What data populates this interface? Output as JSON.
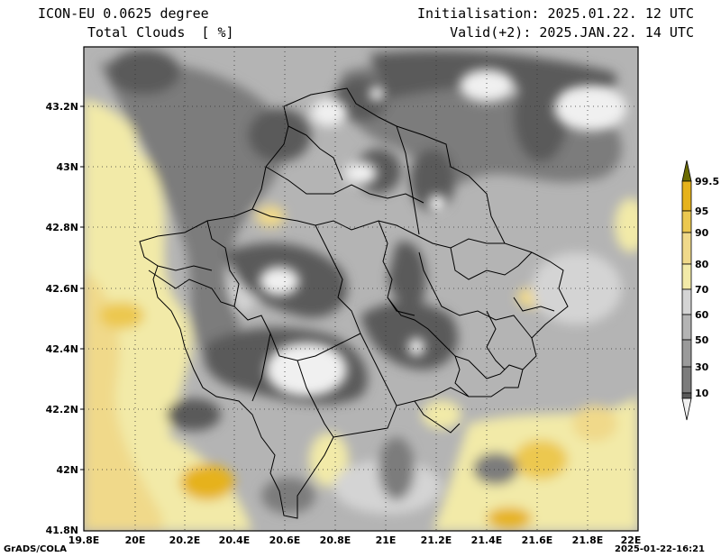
{
  "header": {
    "model": "ICON-EU 0.0625 degree",
    "field": "Total Clouds  [ %]",
    "initialisation": "Initialisation: 2025.01.22. 12 UTC",
    "valid": "Valid(+2): 2025.JAN.22. 14 UTC"
  },
  "axes": {
    "x_ticks": [
      "19.8E",
      "20E",
      "20.2E",
      "20.4E",
      "20.6E",
      "20.8E",
      "21E",
      "21.2E",
      "21.4E",
      "21.6E",
      "21.8E",
      "22E"
    ],
    "y_ticks": [
      "43.2N",
      "43N",
      "42.8N",
      "42.6N",
      "42.4N",
      "42.2N",
      "42N",
      "41.8N"
    ],
    "x_range": [
      19.8,
      22.0
    ],
    "y_range": [
      41.8,
      43.4
    ],
    "grid": true
  },
  "legend": {
    "labels": [
      "99.5",
      "95",
      "90",
      "80",
      "70",
      "60",
      "50",
      "30",
      "10"
    ],
    "colors": [
      "#6b6b00",
      "#e6b21c",
      "#ecc850",
      "#f0d98a",
      "#f2eaa8",
      "#d4d4d4",
      "#b4b4b4",
      "#9a9a9a",
      "#7c7c7c",
      "#5a5a5a",
      "#f0f0f0"
    ]
  },
  "footer": {
    "software": "GrADS/COLA",
    "timestamp": "2025-01-22-16:21"
  }
}
